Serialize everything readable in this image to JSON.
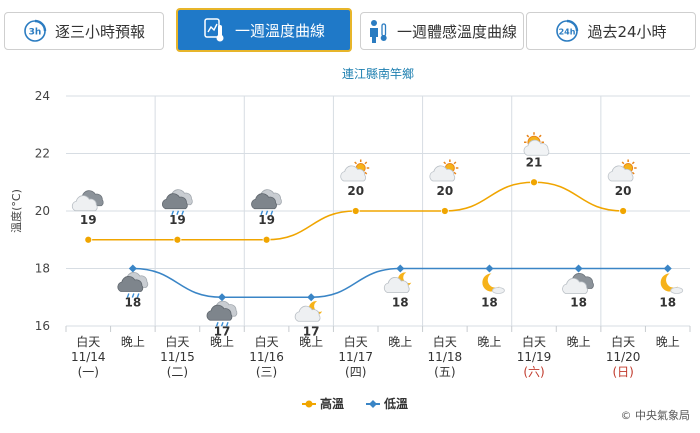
{
  "tabs": [
    {
      "label": "逐三小時預報",
      "icon": "3h-clock-icon",
      "badge": "3h",
      "active": false
    },
    {
      "label": "一週溫度曲線",
      "icon": "thermometer-chart-icon",
      "active": true
    },
    {
      "label": "一週體感溫度曲線",
      "icon": "person-thermometer-icon",
      "active": false
    },
    {
      "label": "過去24小時",
      "icon": "24h-clock-icon",
      "badge": "24h",
      "active": false
    }
  ],
  "copyright": "© 中央氣象局",
  "colors": {
    "high": "#f0a500",
    "low": "#3a85c6",
    "grid": "#d7dde3",
    "active_tab": "#1f79c8",
    "holiday": "#c0392b"
  },
  "chart_data": {
    "type": "line",
    "title": "連江縣南竿鄉",
    "ylabel": "溫度(°C)",
    "xlabel": "",
    "ylim": [
      16,
      24
    ],
    "yticks": [
      16,
      18,
      20,
      22,
      24
    ],
    "grid": true,
    "legend_position": "bottom-center",
    "periods": [
      {
        "part": "白天",
        "date": "11/14",
        "weekday": "(一)",
        "holiday": false,
        "weather_icon": "cloudy-icon"
      },
      {
        "part": "晚上",
        "date": "",
        "weekday": "",
        "holiday": false,
        "weather_icon": "cloudy-rain-icon"
      },
      {
        "part": "白天",
        "date": "11/15",
        "weekday": "(二)",
        "holiday": false,
        "weather_icon": "cloudy-rain-icon"
      },
      {
        "part": "晚上",
        "date": "",
        "weekday": "",
        "holiday": false,
        "weather_icon": "cloudy-rain-icon"
      },
      {
        "part": "白天",
        "date": "11/16",
        "weekday": "(三)",
        "holiday": false,
        "weather_icon": "cloudy-rain-icon"
      },
      {
        "part": "晚上",
        "date": "",
        "weekday": "",
        "holiday": false,
        "weather_icon": "cloudy-night-icon"
      },
      {
        "part": "白天",
        "date": "11/17",
        "weekday": "(四)",
        "holiday": false,
        "weather_icon": "partly-cloudy-icon"
      },
      {
        "part": "晚上",
        "date": "",
        "weekday": "",
        "holiday": false,
        "weather_icon": "partly-cloudy-night-icon"
      },
      {
        "part": "白天",
        "date": "11/18",
        "weekday": "(五)",
        "holiday": false,
        "weather_icon": "partly-cloudy-icon"
      },
      {
        "part": "晚上",
        "date": "",
        "weekday": "",
        "holiday": false,
        "weather_icon": "clear-night-icon"
      },
      {
        "part": "白天",
        "date": "11/19",
        "weekday": "(六)",
        "holiday": true,
        "weather_icon": "sunny-icon"
      },
      {
        "part": "晚上",
        "date": "",
        "weekday": "",
        "holiday": false,
        "weather_icon": "cloudy-icon"
      },
      {
        "part": "白天",
        "date": "11/20",
        "weekday": "(日)",
        "holiday": true,
        "weather_icon": "partly-cloudy-icon"
      },
      {
        "part": "晚上",
        "date": "",
        "weekday": "",
        "holiday": false,
        "weather_icon": "clear-night-icon"
      }
    ],
    "series": [
      {
        "name": "高溫",
        "color": "#f0a500",
        "values": [
          19,
          null,
          19,
          null,
          19,
          null,
          20,
          null,
          20,
          null,
          21,
          null,
          20,
          null
        ]
      },
      {
        "name": "低溫",
        "color": "#3a85c6",
        "values": [
          null,
          18,
          null,
          17,
          null,
          17,
          null,
          18,
          null,
          18,
          null,
          18,
          null,
          18
        ]
      }
    ]
  }
}
